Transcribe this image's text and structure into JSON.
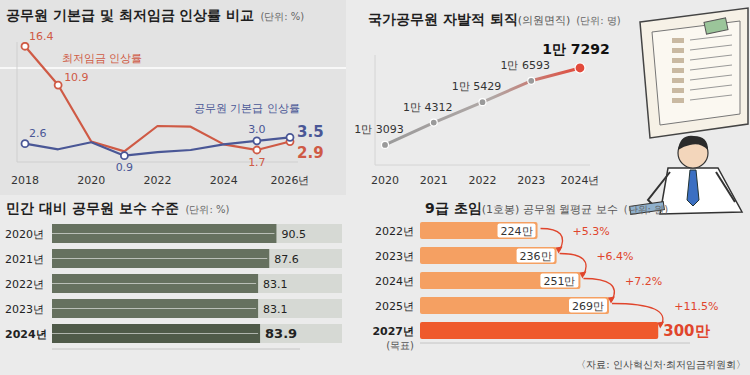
{
  "chart_data": [
    {
      "type": "line",
      "title": "공무원 기본급 및 최저임금 인상률 비교",
      "subtitle": "(단위: %)",
      "categories": [
        "2018",
        null,
        "2020",
        null,
        "2022",
        null,
        "2024",
        null,
        "2026년"
      ],
      "series": [
        {
          "name": "최저임금 인상률",
          "color": "#cf5a45",
          "values": [
            16.4,
            10.9,
            2.9,
            1.5,
            5.1,
            5.0,
            2.5,
            1.7,
            2.9
          ],
          "value_labels": [
            "16.4",
            "10.9",
            null,
            null,
            null,
            null,
            null,
            "1.7",
            "2.9"
          ]
        },
        {
          "name": "공무원 기본급 인상률",
          "color": "#4a5796",
          "values": [
            2.6,
            1.8,
            2.8,
            0.9,
            1.4,
            1.7,
            2.5,
            3.0,
            3.5
          ],
          "value_labels": [
            "2.6",
            null,
            null,
            "0.9",
            null,
            null,
            null,
            "3.0",
            "3.5"
          ]
        }
      ],
      "ylim": [
        0,
        17
      ],
      "yticks": [],
      "tick_labels": "x",
      "data_labels": true,
      "marker": "circle"
    },
    {
      "type": "line",
      "title": "국가공무원 자발적 퇴직(의원면직)",
      "subtitle": "(단위: 명)",
      "categories": [
        "2020",
        "2021",
        "2022",
        "2023",
        "2024년"
      ],
      "values": [
        13093,
        14312,
        15429,
        16593,
        17292
      ],
      "value_labels": [
        "1만 3093",
        "1만 4312",
        "1만 5429",
        "1만 6593",
        "1만 7292"
      ],
      "color": "#e24a3b",
      "ylim": [
        12000,
        18000
      ],
      "yticks": [],
      "tick_labels": "x",
      "data_labels": true,
      "marker": "circle"
    },
    {
      "type": "bar",
      "orientation": "horizontal",
      "title": "민간 대비 공무원 보수 수준",
      "subtitle": "(단위: %)",
      "categories": [
        "2020년",
        "2021년",
        "2022년",
        "2023년",
        "2024년"
      ],
      "values": [
        90.5,
        87.6,
        83.1,
        83.1,
        83.9
      ],
      "color": "#66715f",
      "xlim": [
        0,
        100
      ],
      "xticks": [],
      "tick_labels": "y",
      "data_labels": true
    },
    {
      "type": "bar",
      "orientation": "horizontal",
      "title": "9급 초임(1호봉) 공무원 월평균 보수",
      "subtitle": "(단위: 원)",
      "categories": [
        "2022년",
        "2023년",
        "2024년",
        "2025년",
        "2027년"
      ],
      "category_notes": [
        null,
        null,
        null,
        null,
        "(목표)"
      ],
      "values": [
        2240000,
        2360000,
        2510000,
        2690000,
        3000000
      ],
      "value_labels": [
        "224만",
        "236만",
        "251만",
        "269만",
        "300만"
      ],
      "annotations": [
        "+5.3%",
        "+6.4%",
        "+7.2%",
        "+11.5%"
      ],
      "colors": [
        "#f5a062",
        "#f5a062",
        "#f5a062",
        "#f5a062",
        "#ef5a2c"
      ],
      "xlim": [
        1500000,
        3200000
      ],
      "xticks": [],
      "tick_labels": "y",
      "data_labels": true
    }
  ],
  "source": "〈자료: 인사혁신처·최저임금위원회〉"
}
